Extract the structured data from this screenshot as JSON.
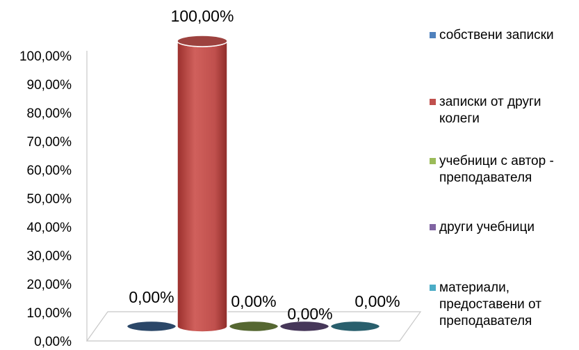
{
  "chart_data": {
    "type": "bar",
    "style": "3d-cylinder",
    "categories": [
      "собствени записки",
      "записки от други колеги",
      "учебници с автор - преподавателя",
      "други учебници",
      "материали, предоставени от преподавателя"
    ],
    "values": [
      0,
      100,
      0,
      0,
      0
    ],
    "data_labels": [
      "0,00%",
      "100,00%",
      "0,00%",
      "0,00%",
      "0,00%"
    ],
    "colors": [
      "#4f81bd",
      "#c0504d",
      "#9bbb59",
      "#8064a2",
      "#4bacc6"
    ],
    "y_ticks": [
      "0,00%",
      "10,00%",
      "20,00%",
      "30,00%",
      "40,00%",
      "50,00%",
      "60,00%",
      "70,00%",
      "80,00%",
      "90,00%",
      "100,00%"
    ],
    "ylim": [
      0,
      100
    ],
    "grid": false,
    "legend_position": "right",
    "legend": [
      {
        "label": "собствени записки",
        "color": "#4f81bd"
      },
      {
        "label": "записки от други колеги",
        "color": "#c0504d"
      },
      {
        "label": "учебници с автор - преподавателя",
        "color": "#9bbb59"
      },
      {
        "label": "други учебници",
        "color": "#8064a2"
      },
      {
        "label": "материали, предоставени от преподавателя",
        "color": "#4bacc6"
      }
    ]
  }
}
